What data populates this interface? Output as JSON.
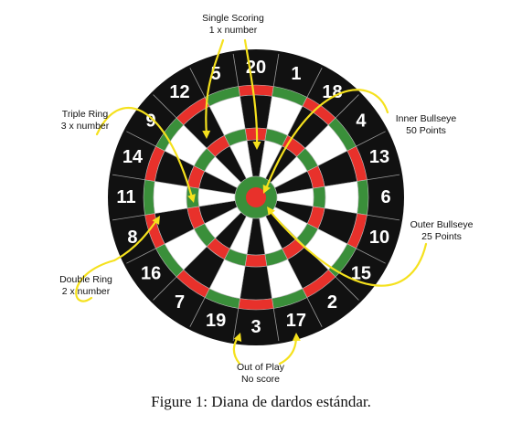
{
  "board": {
    "sector_numbers": [
      "20",
      "1",
      "18",
      "4",
      "13",
      "6",
      "10",
      "15",
      "2",
      "17",
      "3",
      "19",
      "7",
      "16",
      "8",
      "11",
      "14",
      "9",
      "12",
      "5"
    ],
    "colors": {
      "black": "#111111",
      "white": "#ffffff",
      "red": "#e8312b",
      "green": "#3a8f3a",
      "annotation": "#f5e11d"
    }
  },
  "annotations": {
    "single": {
      "line1": "Single Scoring",
      "line2": "1 x number"
    },
    "triple": {
      "line1": "Triple Ring",
      "line2": "3 x number"
    },
    "double": {
      "line1": "Double Ring",
      "line2": "2 x number"
    },
    "inner_bull": {
      "line1": "Inner Bullseye",
      "line2": "50 Points"
    },
    "outer_bull": {
      "line1": "Outer Bullseye",
      "line2": "25 Points"
    },
    "out_of_play": {
      "line1": "Out of Play",
      "line2": "No score"
    }
  },
  "caption": "Figure 1: Diana de dardos estándar."
}
